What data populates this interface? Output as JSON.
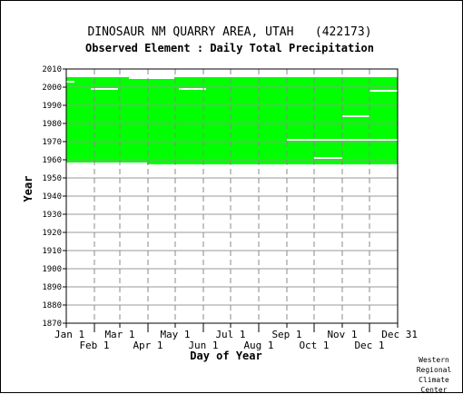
{
  "chart_data": {
    "type": "heatmap",
    "title": "DINOSAUR NM QUARRY AREA, UTAH   (422173)",
    "subtitle": "Observed Element : Daily Total Precipitation",
    "xlabel": "Day of Year",
    "ylabel": "Year",
    "ylim": [
      1870,
      2010
    ],
    "yticks": [
      "2010",
      "2000",
      "1990",
      "1980",
      "1970",
      "1960",
      "1950",
      "1940",
      "1930",
      "1920",
      "1910",
      "1900",
      "1890",
      "1880",
      "1870"
    ],
    "x_top_ticks": [
      "Jan 1",
      "Mar 1",
      "May 1",
      "Jul 1",
      "Sep 1",
      "Nov 1",
      "Dec 31"
    ],
    "x_bottom_ticks": [
      "Feb 1",
      "Apr 1",
      "Jun 1",
      "Aug 1",
      "Oct 1",
      "Dec 1"
    ],
    "x_top_days": [
      1,
      60,
      121,
      182,
      244,
      305,
      366
    ],
    "x_bottom_days": [
      32,
      91,
      152,
      213,
      274,
      335
    ],
    "xlim": [
      1,
      366
    ],
    "grid": true,
    "data_color": "#00ff00",
    "observed": [
      {
        "start_year": 1958.5,
        "end_year": 2005.5,
        "start_day": 1,
        "end_day": 366
      },
      {
        "start_year": 1957.5,
        "end_year": 1958.5,
        "start_day": 90,
        "end_day": 366
      }
    ],
    "gaps": [
      {
        "year": 2003,
        "start_day": 1,
        "end_day": 10
      },
      {
        "year": 1999,
        "start_day": 28,
        "end_day": 58
      },
      {
        "year": 1999,
        "start_day": 125,
        "end_day": 155
      },
      {
        "year": 2005,
        "start_day": 70,
        "end_day": 120
      },
      {
        "year": 1998,
        "start_day": 335,
        "end_day": 366
      },
      {
        "year": 1984,
        "start_day": 305,
        "end_day": 335
      },
      {
        "year": 1971,
        "start_day": 244,
        "end_day": 274
      },
      {
        "year": 1971,
        "start_day": 274,
        "end_day": 366
      },
      {
        "year": 1961,
        "start_day": 274,
        "end_day": 305
      }
    ]
  },
  "credit": {
    "line1": "Western",
    "line2": "Regional",
    "line3": "Climate",
    "line4": "Center"
  }
}
